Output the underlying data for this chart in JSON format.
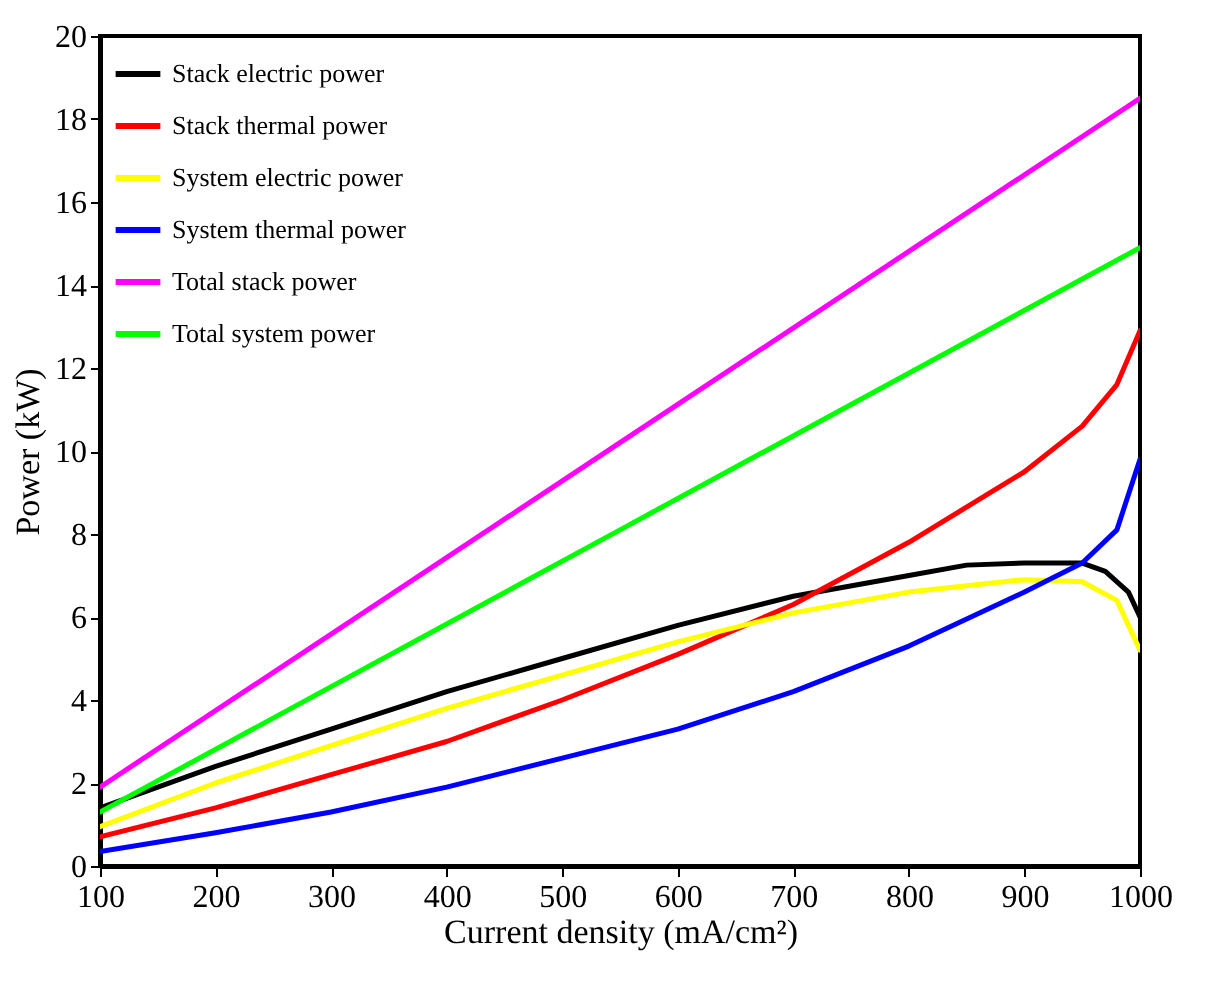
{
  "chart_data": {
    "type": "line",
    "xlabel": "Current density (mA/cm²)",
    "ylabel": "Power (kW)",
    "xlim": [
      100,
      1000
    ],
    "ylim": [
      0,
      20
    ],
    "xticks": [
      100,
      200,
      300,
      400,
      500,
      600,
      700,
      800,
      900,
      1000
    ],
    "yticks": [
      0,
      2,
      4,
      6,
      8,
      10,
      12,
      14,
      16,
      18,
      20
    ],
    "grid": false,
    "legend": "top left",
    "marker": "none",
    "line_style": "solid",
    "series": [
      {
        "name": "Stack electric power",
        "color": "#000000",
        "x": [
          100,
          200,
          300,
          400,
          500,
          600,
          700,
          800,
          850,
          900,
          950,
          970,
          990,
          1000
        ],
        "values": [
          1.4,
          2.4,
          3.3,
          4.2,
          5.0,
          5.8,
          6.5,
          7.0,
          7.25,
          7.3,
          7.3,
          7.1,
          6.6,
          6.0
        ]
      },
      {
        "name": "Stack thermal power",
        "color": "#ff0000",
        "x": [
          100,
          200,
          300,
          400,
          500,
          600,
          700,
          800,
          900,
          950,
          980,
          1000
        ],
        "values": [
          0.7,
          1.4,
          2.2,
          3.0,
          4.0,
          5.1,
          6.3,
          7.8,
          9.5,
          10.6,
          11.6,
          12.9
        ]
      },
      {
        "name": "System electric power",
        "color": "#ffff00",
        "x": [
          100,
          200,
          300,
          400,
          500,
          600,
          700,
          800,
          900,
          950,
          980,
          1000
        ],
        "values": [
          0.95,
          2.0,
          2.9,
          3.8,
          4.6,
          5.4,
          6.1,
          6.6,
          6.9,
          6.85,
          6.4,
          5.2
        ]
      },
      {
        "name": "System thermal power",
        "color": "#0000ff",
        "x": [
          100,
          200,
          300,
          400,
          500,
          600,
          700,
          800,
          900,
          950,
          980,
          1000
        ],
        "values": [
          0.35,
          0.8,
          1.3,
          1.9,
          2.6,
          3.3,
          4.2,
          5.3,
          6.6,
          7.3,
          8.1,
          9.8
        ]
      },
      {
        "name": "Total stack power",
        "color": "#ff00ff",
        "x": [
          100,
          550,
          1000
        ],
        "values": [
          1.9,
          10.2,
          18.5
        ]
      },
      {
        "name": "Total system power",
        "color": "#00ff00",
        "x": [
          100,
          550,
          1000
        ],
        "values": [
          1.3,
          8.1,
          14.9
        ]
      }
    ]
  }
}
